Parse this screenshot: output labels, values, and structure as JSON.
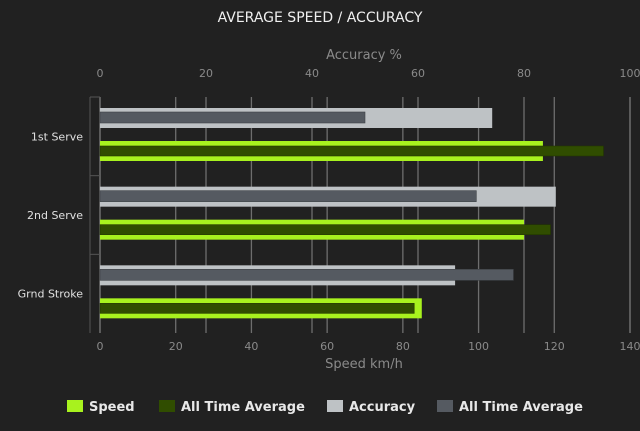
{
  "chart_data": {
    "type": "bar",
    "orientation": "horizontal",
    "title": "AVERAGE SPEED / ACCURACY",
    "categories": [
      "1st Serve",
      "2nd Serve",
      "Grnd Stroke"
    ],
    "top_axis": {
      "label": "Accuracy %",
      "range": [
        0,
        100
      ],
      "ticks": [
        "0",
        "20",
        "40",
        "60",
        "80",
        "100"
      ]
    },
    "bottom_axis": {
      "label": "Speed km/h",
      "range": [
        0,
        140
      ],
      "ticks": [
        "0",
        "20",
        "40",
        "60",
        "80",
        "100",
        "120",
        "140"
      ]
    },
    "grid": true,
    "legend_position": "bottom",
    "series": [
      {
        "name": "Speed",
        "axis": "bottom",
        "color": "#a8f21e",
        "values": [
          117,
          112,
          85
        ]
      },
      {
        "name": "All Time Average",
        "axis": "bottom",
        "color": "#304d00",
        "values": [
          133,
          119,
          83
        ]
      },
      {
        "name": "Accuracy",
        "axis": "top",
        "color": "#bec2c5",
        "values": [
          74,
          86,
          67
        ]
      },
      {
        "name": "All Time Average",
        "axis": "top",
        "color": "#555a61",
        "values": [
          50,
          71,
          78
        ]
      }
    ]
  }
}
